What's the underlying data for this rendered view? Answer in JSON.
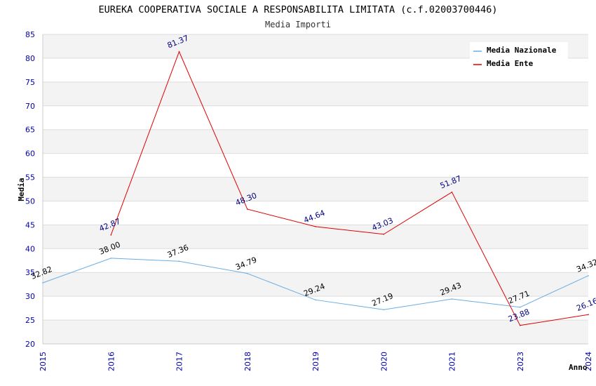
{
  "chart_data": {
    "type": "line",
    "title": "EUREKA COOPERATIVA SOCIALE A RESPONSABILITA LIMITATA (c.f.02003700446)",
    "subtitle": "Media Importi",
    "xlabel": "Anno",
    "ylabel": "Media",
    "ylim": [
      20,
      85
    ],
    "yticks": [
      20,
      25,
      30,
      35,
      40,
      45,
      50,
      55,
      60,
      65,
      70,
      75,
      80,
      85
    ],
    "categories": [
      "2015",
      "2016",
      "2017",
      "2018",
      "2019",
      "2020",
      "2021",
      "2023",
      "2024"
    ],
    "grid": "horizontal alternating bands",
    "legend_position": "top-right",
    "series": [
      {
        "name": "Media Nazionale",
        "color": "#6aade4",
        "label_color": "#000000",
        "values": [
          32.82,
          38.0,
          37.36,
          34.79,
          29.24,
          27.19,
          29.43,
          27.71,
          34.32
        ],
        "labels": [
          "32.82",
          "38.00",
          "37.36",
          "34.79",
          "29.24",
          "27.19",
          "29.43",
          "27.71",
          "34.32"
        ]
      },
      {
        "name": "Media Ente",
        "color": "#e00000",
        "label_color": "#000080",
        "values": [
          null,
          42.87,
          81.37,
          48.3,
          44.64,
          43.03,
          51.87,
          23.88,
          26.16
        ],
        "labels": [
          "",
          "42.87",
          "81.37",
          "48.30",
          "44.64",
          "43.03",
          "51.87",
          "23.88",
          "26.16"
        ]
      }
    ]
  }
}
